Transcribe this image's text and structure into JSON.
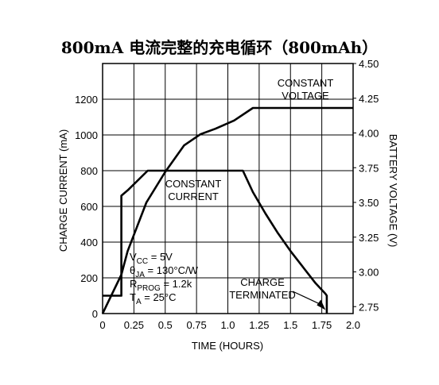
{
  "title": "800mA 电流完整的充电循环（800mAh）",
  "chart_data": {
    "type": "line",
    "xlabel": "TIME (HOURS)",
    "ylabel_left": "CHARGE CURRENT (mA)",
    "ylabel_right": "BATTERY VOLTAGE (V)",
    "xlim": [
      0,
      2.0
    ],
    "ylim_left": [
      0,
      1400
    ],
    "ylim_right": [
      2.7,
      4.5
    ],
    "x_ticks": [
      "0",
      "0.25",
      "0.5",
      "0.75",
      "1.0",
      "1.25",
      "1.5",
      "1.75",
      "2.0"
    ],
    "y_left_ticks": [
      "0",
      "200",
      "400",
      "600",
      "800",
      "1000",
      "1200"
    ],
    "y_right_ticks": [
      "2.75",
      "3.00",
      "3.25",
      "3.50",
      "3.75",
      "4.00",
      "4.25",
      "4.50"
    ],
    "grid": true,
    "series": [
      {
        "axis": "left",
        "x": [
          0,
          0.15,
          0.15,
          0.2,
          0.36,
          1.12,
          1.2,
          1.3,
          1.4,
          1.5,
          1.6,
          1.7,
          1.78,
          1.79,
          1.79
        ],
        "values": [
          100,
          100,
          660,
          690,
          800,
          800,
          680,
          560,
          450,
          350,
          260,
          170,
          110,
          100,
          0
        ]
      },
      {
        "axis": "right",
        "x": [
          0,
          0.15,
          0.2,
          0.35,
          0.5,
          0.65,
          0.78,
          0.9,
          1.05,
          1.2,
          2.0
        ],
        "values": [
          2.7,
          2.98,
          3.15,
          3.5,
          3.72,
          3.91,
          3.99,
          4.03,
          4.09,
          4.18,
          4.18
        ]
      }
    ],
    "annotations": {
      "constant_voltage": [
        "CONSTANT",
        "VOLTAGE"
      ],
      "constant_current": [
        "CONSTANT",
        "CURRENT"
      ],
      "charge_terminated": [
        "CHARGE",
        "TERMINATED"
      ],
      "conditions": [
        {
          "main": "V",
          "sub": "CC",
          "rest": " = 5V"
        },
        {
          "main": "θ",
          "sub": "JA",
          "rest": " = 130°C/W"
        },
        {
          "main": "R",
          "sub": "PROG",
          "rest": " = 1.2k"
        },
        {
          "main": "T",
          "sub": "A",
          "rest": " = 25°C"
        }
      ]
    }
  }
}
